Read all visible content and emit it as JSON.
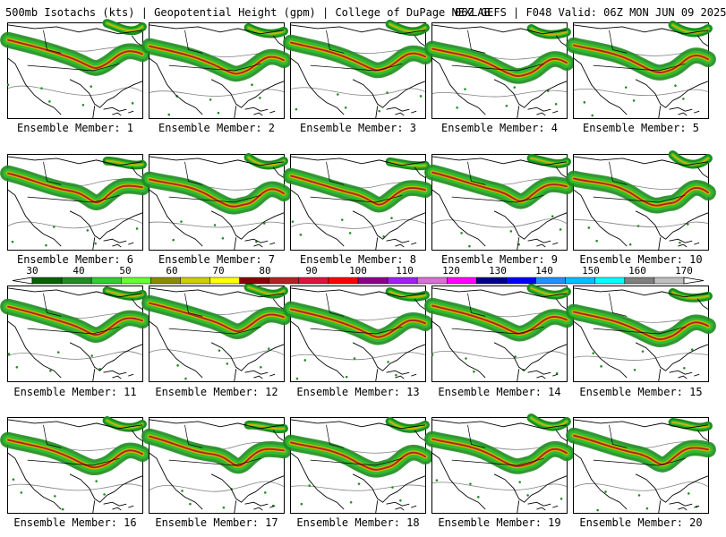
{
  "header": {
    "left": "500mb Isotachs (kts) | Geopotential Height (gpm) | College of DuPage NEXLAB",
    "right": "06Z GEFS | F048 Valid: 06Z MON JUN 09 2025"
  },
  "caption_prefix": "Ensemble Member:",
  "members": [
    {
      "label": "Ensemble Member: 1"
    },
    {
      "label": "Ensemble Member: 2"
    },
    {
      "label": "Ensemble Member: 3"
    },
    {
      "label": "Ensemble Member: 4"
    },
    {
      "label": "Ensemble Member: 5"
    },
    {
      "label": "Ensemble Member: 6"
    },
    {
      "label": "Ensemble Member: 7"
    },
    {
      "label": "Ensemble Member: 8"
    },
    {
      "label": "Ensemble Member: 9"
    },
    {
      "label": "Ensemble Member: 10"
    },
    {
      "label": "Ensemble Member: 11"
    },
    {
      "label": "Ensemble Member: 12"
    },
    {
      "label": "Ensemble Member: 13"
    },
    {
      "label": "Ensemble Member: 14"
    },
    {
      "label": "Ensemble Member: 15"
    },
    {
      "label": "Ensemble Member: 16"
    },
    {
      "label": "Ensemble Member: 17"
    },
    {
      "label": "Ensemble Member: 18"
    },
    {
      "label": "Ensemble Member: 19"
    },
    {
      "label": "Ensemble Member: 20"
    }
  ],
  "colorbar": {
    "ticks": [
      "30",
      "40",
      "50",
      "60",
      "70",
      "80",
      "90",
      "100",
      "110",
      "120",
      "130",
      "140",
      "150",
      "160",
      "170"
    ],
    "colors": [
      "#006400",
      "#228b22",
      "#32cd32",
      "#66ff33",
      "#8b8b00",
      "#cdcd00",
      "#ffff00",
      "#8b0000",
      "#b22222",
      "#dc143c",
      "#ff0000",
      "#8b008b",
      "#a020f0",
      "#da70d6",
      "#ff00ff",
      "#00008b",
      "#0000ff",
      "#1e90ff",
      "#00bfff",
      "#00ffff",
      "#7f7f7f",
      "#bfbfbf"
    ]
  },
  "colors": {
    "jet_outer": "#1e8c1e",
    "jet_mid": "#2ebd2e",
    "jet_core": "#c8b400",
    "jet_max": "#b22222",
    "height_contour": "#808080",
    "coastline": "#000000"
  }
}
